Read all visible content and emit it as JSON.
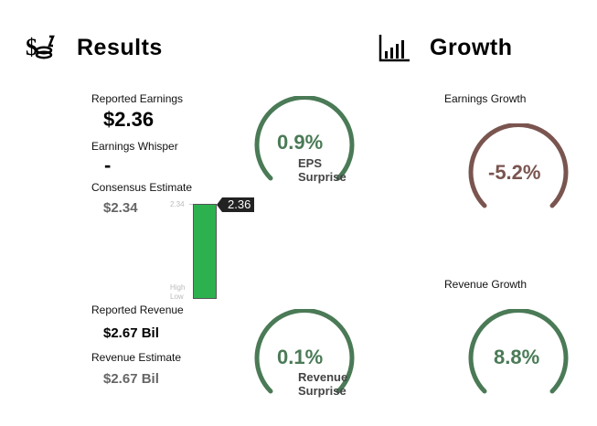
{
  "results": {
    "title": "Results",
    "icon": "money-coins-icon",
    "reported_earnings_label": "Reported Earnings",
    "reported_earnings_value": "$2.36",
    "earnings_whisper_label": "Earnings Whisper",
    "earnings_whisper_value": "-",
    "consensus_estimate_label": "Consensus Estimate",
    "consensus_estimate_value": "$2.34",
    "reported_revenue_label": "Reported Revenue",
    "reported_revenue_value": "$2.67 Bil",
    "revenue_estimate_label": "Revenue Estimate",
    "revenue_estimate_value": "$2.67 Bil"
  },
  "eps_bar": {
    "top_tick": "2.34",
    "flag_value": "2.36",
    "high_label": "High",
    "low_label": "Low",
    "bar_color": "#2db14f"
  },
  "eps_surprise": {
    "value": "0.9%",
    "line1": "EPS",
    "line2": "Surprise",
    "color": "#4a7a56"
  },
  "revenue_surprise": {
    "value": "0.1%",
    "line1": "Revenue",
    "line2": "Surprise",
    "color": "#4a7a56"
  },
  "growth": {
    "title": "Growth",
    "icon": "bar-chart-icon",
    "earnings_growth_label": "Earnings Growth",
    "earnings_growth_value": "-5.2%",
    "earnings_growth_color": "#7a5550",
    "revenue_growth_label": "Revenue Growth",
    "revenue_growth_value": "8.8%",
    "revenue_growth_color": "#4a7a56"
  }
}
